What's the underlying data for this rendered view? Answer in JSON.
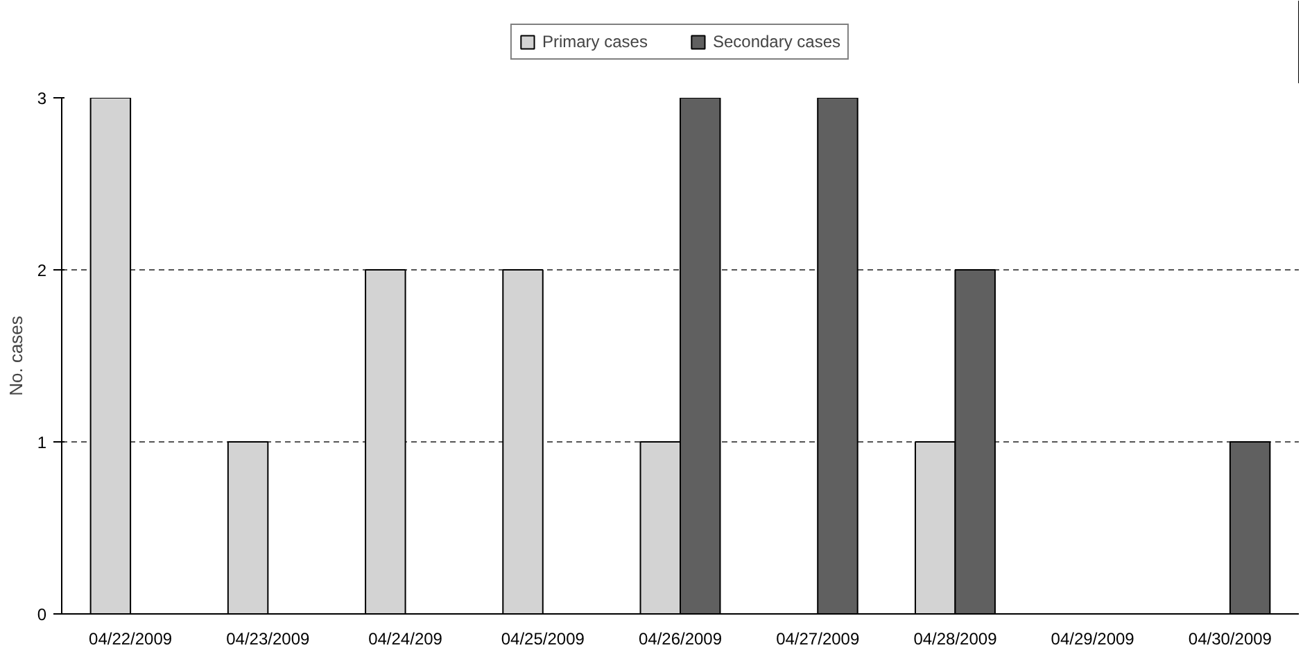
{
  "chart_data": {
    "type": "bar",
    "ylabel": "No. cases",
    "categories": [
      "04/22/2009",
      "04/23/2009",
      "04/24/209",
      "04/25/2009",
      "04/26/2009",
      "04/27/2009",
      "04/28/2009",
      "04/29/2009",
      "04/30/2009"
    ],
    "series": [
      {
        "name": "Primary cases",
        "color": "#d3d3d3",
        "values": [
          3,
          1,
          2,
          2,
          1,
          0,
          1,
          0,
          0
        ]
      },
      {
        "name": "Secondary cases",
        "color": "#606060",
        "values": [
          0,
          0,
          0,
          0,
          3,
          3,
          2,
          0,
          1
        ]
      }
    ],
    "ylim": [
      0,
      3
    ],
    "yticks": [
      0,
      1,
      2,
      3
    ],
    "grid": "y",
    "legend": "top"
  }
}
